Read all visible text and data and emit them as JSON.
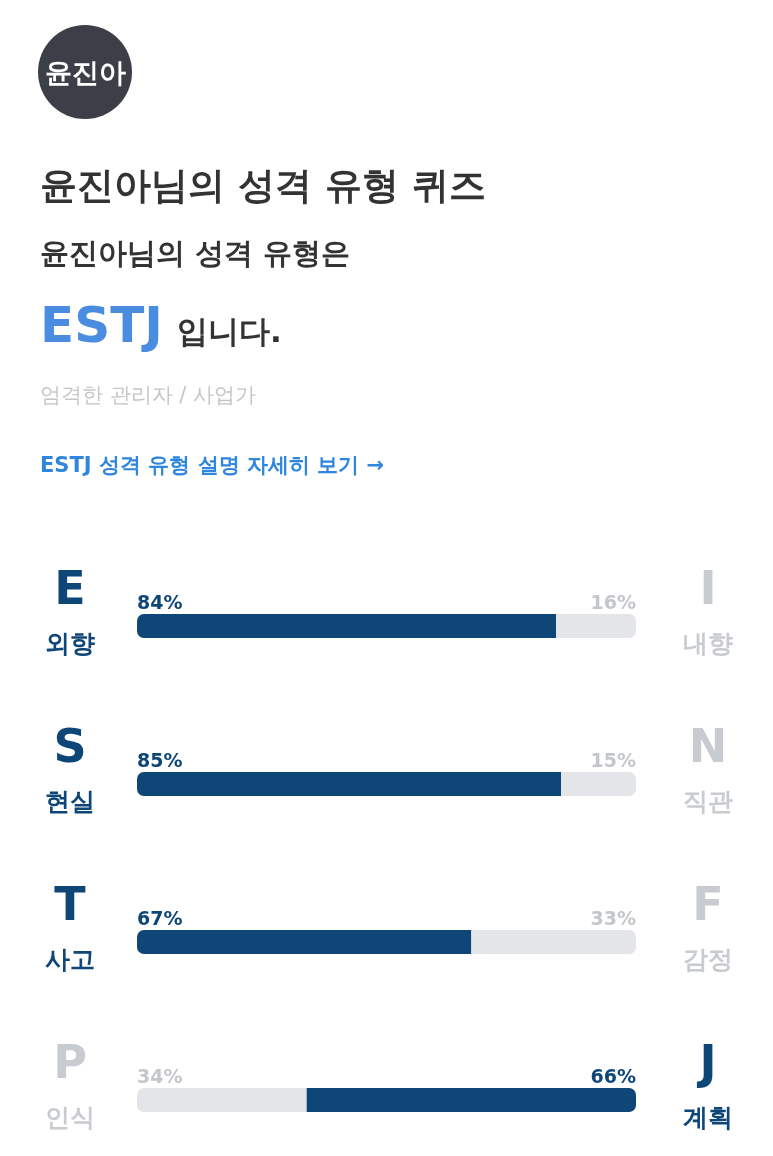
{
  "chart_data": {
    "type": "bar",
    "orientation": "horizontal",
    "stacked": true,
    "title": "윤진아님의 성격 유형 퀴즈",
    "subtitle": "윤진아님의 성격 유형은",
    "categories": [
      "E",
      "S",
      "T",
      "P"
    ],
    "series": [
      {
        "values": [
          84,
          85,
          67,
          34
        ],
        "colors": [
          "#0e4677",
          "#0e4677",
          "#0e4677",
          "#e3e5e9"
        ],
        "value_labels": [
          "84%",
          "85%",
          "67%",
          "34%"
        ]
      },
      {
        "values": [
          16,
          15,
          33,
          66
        ],
        "colors": [
          "#e3e5e9",
          "#e3e5e9",
          "#e3e5e9",
          "#0e4677"
        ],
        "value_labels": [
          "16%",
          "15%",
          "33%",
          "66%"
        ]
      }
    ],
    "annotations": [
      "윤진아",
      "ESTJ",
      "입니다.",
      "엄격한 관리자 / 사업가",
      "ESTJ 성격 유형 설명 자세히 보기 →",
      "외향",
      "I",
      "내향",
      "현실",
      "N",
      "직관",
      "사고",
      "F",
      "감정",
      "인식",
      "J",
      "계획"
    ]
  }
}
